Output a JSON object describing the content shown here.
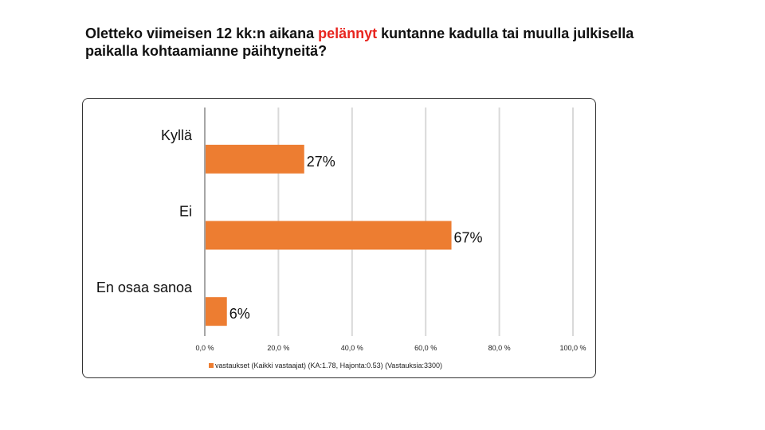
{
  "title": {
    "part1": "Oletteko viimeisen 12 kk:n aikana ",
    "highlight": "pelännyt",
    "part2": " kuntanne kadulla tai muulla julkisella paikalla   kohtaamianne päihtyneitä?"
  },
  "chart_data": {
    "type": "bar",
    "orientation": "horizontal",
    "categories": [
      "Kyllä",
      "Ei",
      "En osaa sanoa"
    ],
    "series": [
      {
        "name": "vastaukset (Kaikki vastaajat) (KA:1.78, Hajonta:0.53) (Vastauksia:3300)",
        "values": [
          27,
          67,
          6
        ],
        "labels": [
          "27%",
          "67%",
          "6%"
        ]
      }
    ],
    "xlim": [
      0,
      100
    ],
    "xticks": [
      0,
      20,
      40,
      60,
      80,
      100
    ],
    "xtick_labels": [
      "0,0 %",
      "20,0 %",
      "40,0 %",
      "60,0 %",
      "80,0 %",
      "100,0 %"
    ],
    "grid": true,
    "legend_position": "bottom",
    "colors": {
      "bar": "#ed7d31",
      "grid": "#d9d9d9",
      "title_highlight": "#e8251f"
    }
  }
}
